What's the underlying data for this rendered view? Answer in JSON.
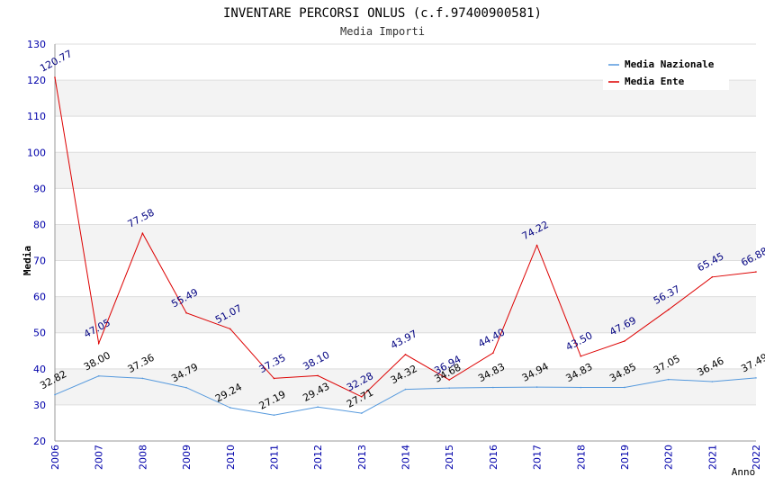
{
  "chart_data": {
    "type": "line",
    "title": "INVENTARE PERCORSI ONLUS (c.f.97400900581)",
    "subtitle": "Media Importi",
    "xlabel": "Anno",
    "ylabel": "Media",
    "ylim": [
      20,
      130
    ],
    "yticks": [
      20,
      30,
      40,
      50,
      60,
      70,
      80,
      90,
      100,
      110,
      120,
      130
    ],
    "x": [
      "2006",
      "2007",
      "2008",
      "2009",
      "2010",
      "2011",
      "2012",
      "2013",
      "2014",
      "2015",
      "2016",
      "2017",
      "2018",
      "2019",
      "2020",
      "2021",
      "2022"
    ],
    "grid": "horizontal bands",
    "legend_position": "top-right",
    "series": [
      {
        "name": "Media Nazionale",
        "color": "#5599dd",
        "label_color": "#000000",
        "values": [
          32.82,
          38.0,
          37.36,
          34.79,
          29.24,
          27.19,
          29.43,
          27.71,
          34.32,
          34.68,
          34.83,
          34.94,
          34.83,
          34.85,
          37.05,
          36.46,
          37.49
        ],
        "labels": [
          "32.82",
          "38.00",
          "37.36",
          "34.79",
          "29.24",
          "27.19",
          "29.43",
          "27.71",
          "34.32",
          "34.68",
          "34.83",
          "34.94",
          "34.83",
          "34.85",
          "37.05",
          "36.46",
          "37.49"
        ]
      },
      {
        "name": "Media Ente",
        "color": "#dd0000",
        "label_color": "#000080",
        "values": [
          120.77,
          47.05,
          77.58,
          55.49,
          51.07,
          37.35,
          38.1,
          32.28,
          43.97,
          36.94,
          44.4,
          74.22,
          43.5,
          47.69,
          56.37,
          65.45,
          66.88
        ],
        "labels": [
          "120.77",
          "47.05",
          "77.58",
          "55.49",
          "51.07",
          "37.35",
          "38.10",
          "32.28",
          "43.97",
          "36.94",
          "44.40",
          "74.22",
          "43.50",
          "47.69",
          "56.37",
          "65.45",
          "66.88"
        ]
      }
    ]
  }
}
